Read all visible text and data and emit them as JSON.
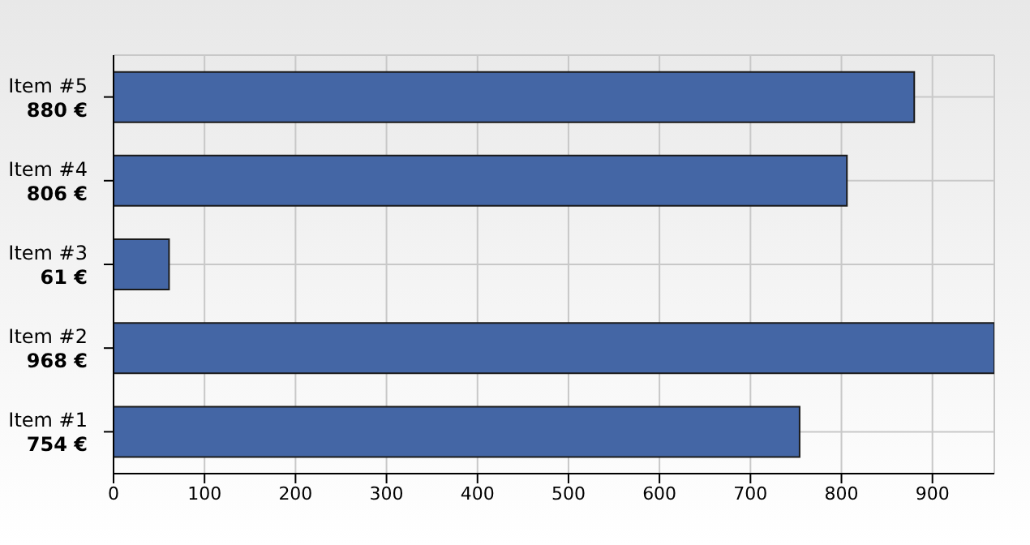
{
  "chart_data": {
    "type": "bar",
    "orientation": "horizontal",
    "categories": [
      "Item #5",
      "Item #4",
      "Item #3",
      "Item #2",
      "Item #1"
    ],
    "values": [
      880,
      806,
      61,
      968,
      754
    ],
    "value_labels": [
      "880 €",
      "806 €",
      "61 €",
      "968 €",
      "754 €"
    ],
    "color": "#4466a5",
    "xlim": [
      0,
      968
    ],
    "xticks": [
      0,
      100,
      200,
      300,
      400,
      500,
      600,
      700,
      800,
      900
    ],
    "grid": true,
    "legend": false
  }
}
